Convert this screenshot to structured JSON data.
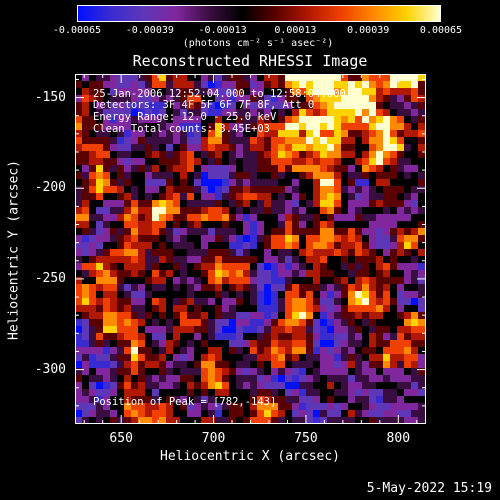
{
  "colorbar": {
    "ticks": [
      "-0.00065",
      "-0.00039",
      "-0.00013",
      "0.00013",
      "0.00039",
      "0.00065"
    ],
    "unit": "(photons cm⁻² s⁻¹ asec⁻²)"
  },
  "info": {
    "time": "25-Jan-2006 12:52:04.000 to 12:58:04.000",
    "detectors": "Detectors: 3F 4F 5F 6F 7F 8F, Att 0",
    "energy": "Energy Range: 12.0 - 25.0 keV",
    "clean": "Clean    Total counts: 3.45E+03",
    "peak": "Position of Peak = [782,-143]"
  },
  "footer_date": "5-May-2022 15:19",
  "chart_data": {
    "type": "heatmap",
    "title": "Reconstructed RHESSI Image",
    "xlabel": "Heliocentric X (arcsec)",
    "ylabel": "Heliocentric Y (arcsec)",
    "xlim": [
      625,
      815
    ],
    "ylim": [
      -330,
      -137
    ],
    "xticks": [
      "650",
      "700",
      "750",
      "800"
    ],
    "yticks": [
      "-150",
      "-200",
      "-250",
      "-300"
    ],
    "color_range": [
      -0.00065,
      0.00065
    ],
    "peak": [
      782,
      -143
    ],
    "colormap": [
      "#0010ff",
      "#3a2bd0",
      "#5e36b8",
      "#80279e",
      "#3a0d40",
      "#000000",
      "#5a0000",
      "#b01800",
      "#f04000",
      "#ff8a00",
      "#ffd200",
      "#ffffd0"
    ]
  }
}
